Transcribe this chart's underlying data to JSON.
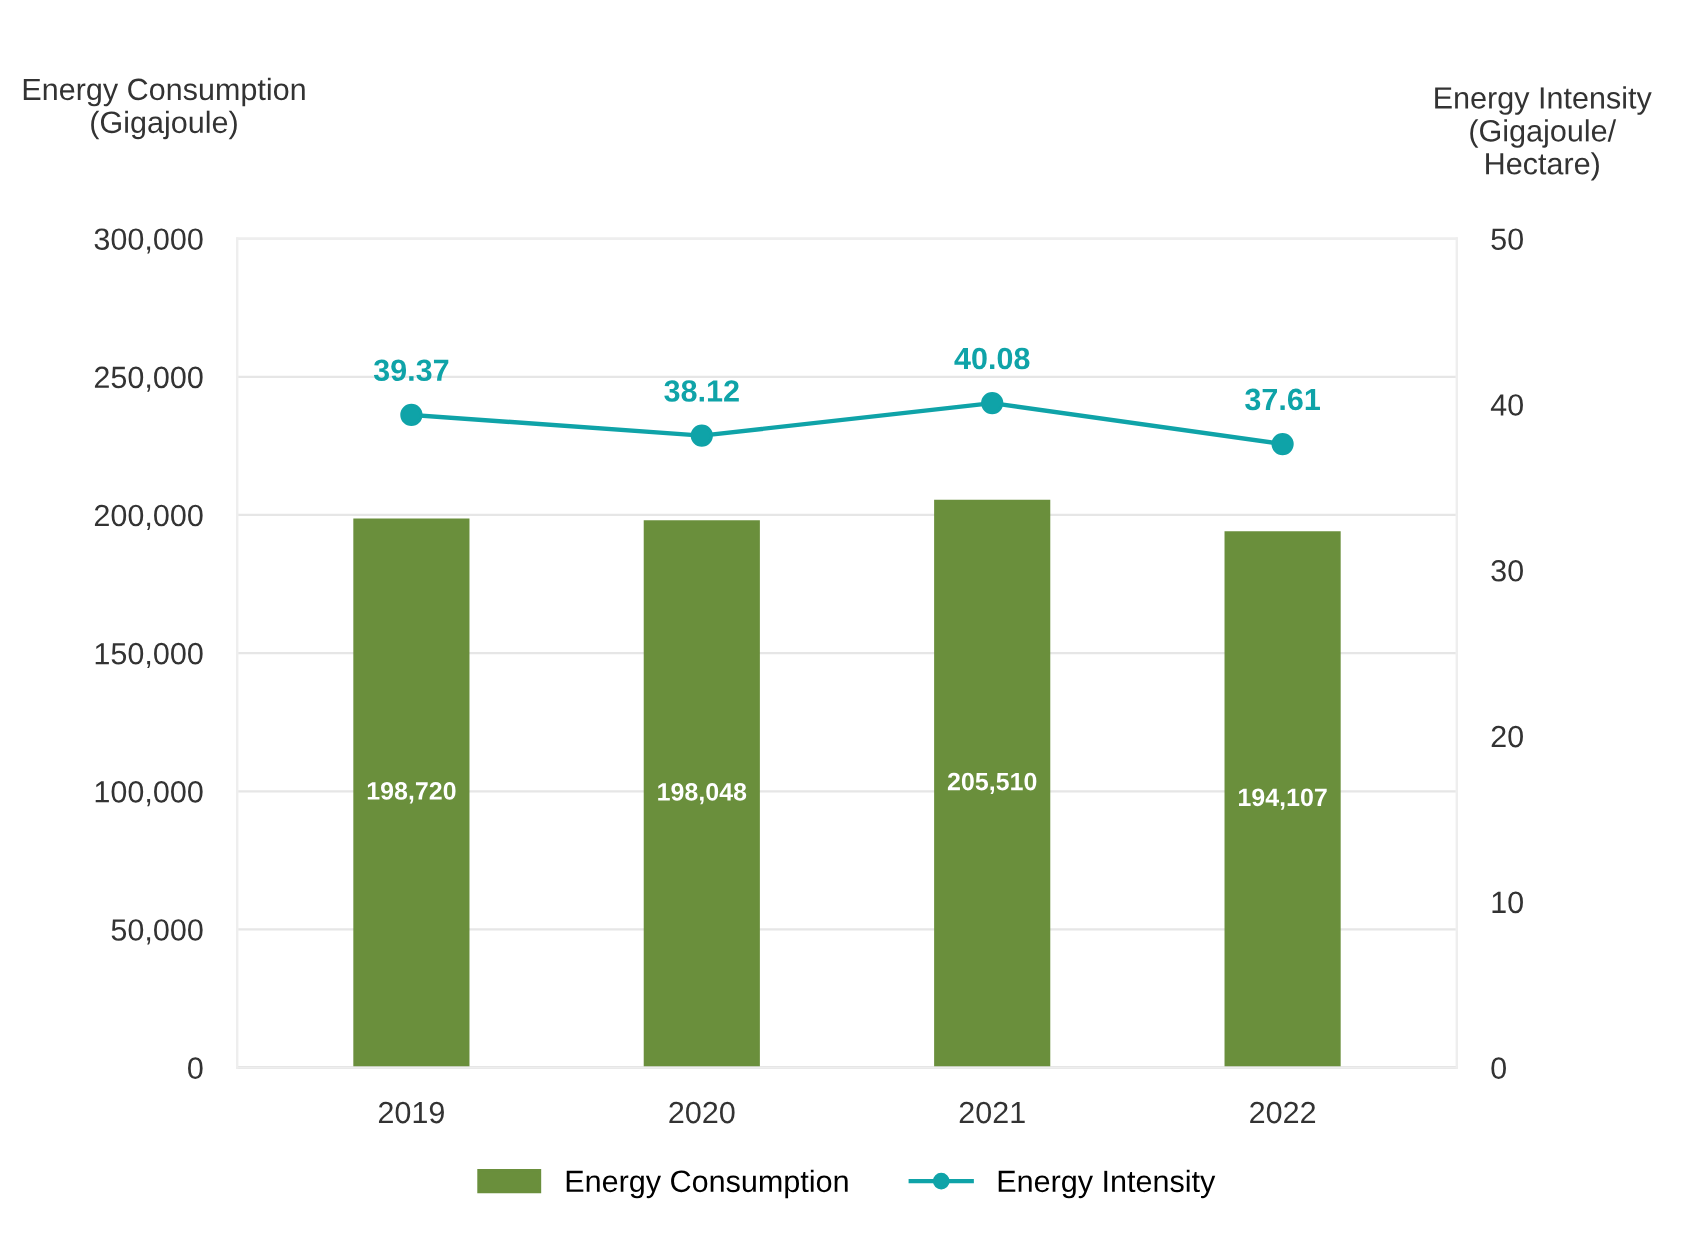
{
  "chart_data": {
    "type": "bar",
    "categories": [
      "2019",
      "2020",
      "2021",
      "2022"
    ],
    "ylabel": "Energy Consumption\n(Gigajoule)",
    "y2label": "Energy Intensity\n(Gigajoule/\nHectare)",
    "series": [
      {
        "name": "Energy Consumption",
        "color": "#6a8f3c",
        "values": [
          198720,
          198048,
          205510,
          194107
        ],
        "value_labels": [
          "198,720",
          "198,048",
          "205,510",
          "194,107"
        ]
      },
      {
        "name": "Energy Intensity",
        "type": "line",
        "axis": "y2",
        "color": "#0fa3a8",
        "marker": "circle",
        "values": [
          39.37,
          38.12,
          40.08,
          37.61
        ],
        "value_labels": [
          "39.37",
          "38.12",
          "40.08",
          "37.61"
        ]
      }
    ],
    "ylim": [
      0,
      300000
    ],
    "yticks": [
      {
        "value": 0,
        "label": "0"
      },
      {
        "value": 50000,
        "label": "50,000"
      },
      {
        "value": 100000,
        "label": "100,000"
      },
      {
        "value": 150000,
        "label": "150,000"
      },
      {
        "value": 200000,
        "label": "200,000"
      },
      {
        "value": 250000,
        "label": "250,000"
      },
      {
        "value": 300000,
        "label": "300,000"
      }
    ],
    "y2lim": [
      0,
      50
    ],
    "y2ticks": [
      0,
      10,
      20,
      30,
      40,
      50
    ],
    "grid": "y",
    "legend": "bottom"
  }
}
